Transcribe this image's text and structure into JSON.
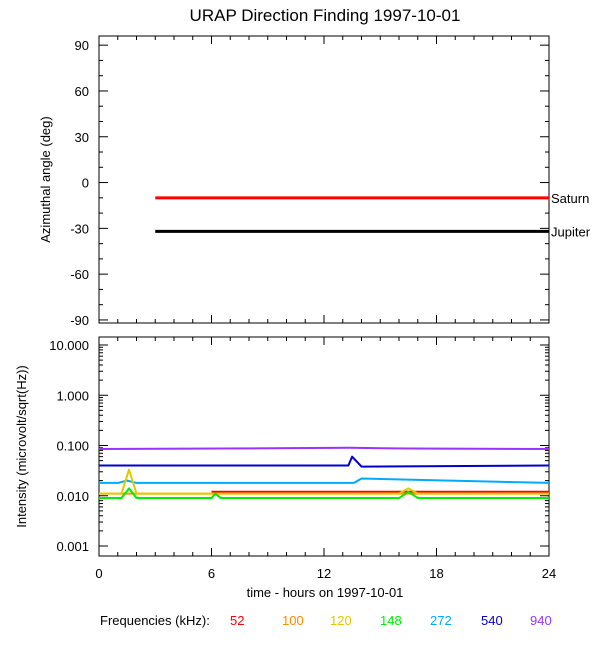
{
  "title": "URAP Direction Finding  1997-10-01",
  "xlabel": "time - hours on 1997-10-01",
  "frequency_legend": {
    "label": "Frequencies (kHz):",
    "items": [
      {
        "value": "52",
        "color": "#ff0000"
      },
      {
        "value": "100",
        "color": "#ff8c00"
      },
      {
        "value": "120",
        "color": "#e6c800"
      },
      {
        "value": "148",
        "color": "#00ee00"
      },
      {
        "value": "272",
        "color": "#00aaff"
      },
      {
        "value": "540",
        "color": "#0000cc"
      },
      {
        "value": "940",
        "color": "#9933ff"
      }
    ]
  },
  "chart_data": [
    {
      "type": "line",
      "panel": "top",
      "ylabel": "Azimuthal angle (deg)",
      "xlim": [
        0,
        24
      ],
      "ylim": [
        -92,
        96
      ],
      "x_ticks": [
        "0",
        "6",
        "12",
        "18",
        "24"
      ],
      "y_ticks": [
        {
          "value": 90,
          "label": "90"
        },
        {
          "value": 60,
          "label": "60"
        },
        {
          "value": 30,
          "label": "30"
        },
        {
          "value": 0,
          "label": "0"
        },
        {
          "value": -30,
          "label": "-30"
        },
        {
          "value": -60,
          "label": "-60"
        },
        {
          "value": -90,
          "label": "-90"
        }
      ],
      "series": [
        {
          "name": "Saturn",
          "color": "#ff0000",
          "x": [
            3,
            24
          ],
          "y": [
            -10,
            -10
          ]
        },
        {
          "name": "Jupiter",
          "color": "#000000",
          "x": [
            3,
            24
          ],
          "y": [
            -32,
            -32
          ]
        }
      ]
    },
    {
      "type": "line",
      "panel": "bottom",
      "ylabel": "Intensity (microvolt/sqrt(Hz))",
      "log_scale": true,
      "xlim": [
        0,
        24
      ],
      "ylim": [
        0.001,
        10
      ],
      "x_ticks": [
        "0",
        "6",
        "12",
        "18",
        "24"
      ],
      "y_ticks": [
        {
          "value": 10,
          "label": "10.000"
        },
        {
          "value": 1,
          "label": "1.000"
        },
        {
          "value": 0.1,
          "label": "0.100"
        },
        {
          "value": 0.01,
          "label": "0.010"
        },
        {
          "value": 0.001,
          "label": "0.001"
        }
      ],
      "series": [
        {
          "name": "940",
          "color": "#9933ff",
          "x": [
            0,
            6.5,
            13.4,
            16.5,
            24
          ],
          "y": [
            0.085,
            0.087,
            0.09,
            0.087,
            0.085
          ]
        },
        {
          "name": "540",
          "color": "#0000cc",
          "x": [
            0,
            13.3,
            13.5,
            14,
            24
          ],
          "y": [
            0.04,
            0.04,
            0.06,
            0.038,
            0.04
          ]
        },
        {
          "name": "272",
          "color": "#00aaff",
          "x": [
            0,
            1,
            1.5,
            2,
            13.6,
            14,
            24
          ],
          "y": [
            0.018,
            0.018,
            0.02,
            0.018,
            0.018,
            0.022,
            0.018
          ]
        },
        {
          "name": "52",
          "color": "#ff0000",
          "x": [
            6,
            24
          ],
          "y": [
            0.012,
            0.012
          ]
        },
        {
          "name": "100",
          "color": "#ff8c00",
          "x": [
            0,
            24
          ],
          "y": [
            0.011,
            0.011
          ]
        },
        {
          "name": "120",
          "color": "#e6c800",
          "x": [
            0,
            1.2,
            1.6,
            2,
            2.5,
            16,
            16.5,
            17,
            24
          ],
          "y": [
            0.011,
            0.011,
            0.033,
            0.011,
            0.011,
            0.011,
            0.014,
            0.011,
            0.011
          ]
        },
        {
          "name": "148",
          "color": "#00ee00",
          "x": [
            0,
            1.2,
            1.6,
            2,
            6,
            6.2,
            6.5,
            13.5,
            16,
            16.5,
            17,
            24
          ],
          "y": [
            0.009,
            0.009,
            0.014,
            0.009,
            0.009,
            0.011,
            0.009,
            0.009,
            0.009,
            0.012,
            0.009,
            0.009
          ]
        }
      ]
    }
  ]
}
